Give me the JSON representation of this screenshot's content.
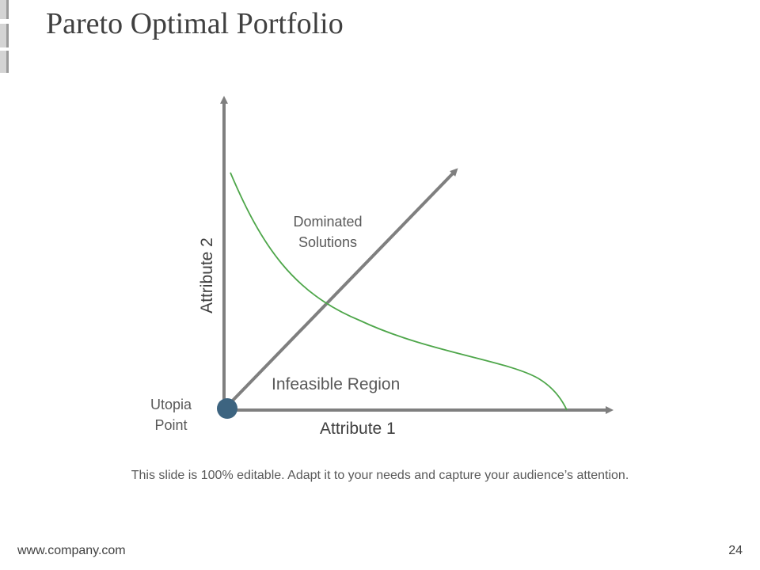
{
  "slide": {
    "title": "Pareto Optimal Portfolio",
    "caption": "This slide is 100% editable. Adapt it to your needs and capture your audience’s attention.",
    "footer_url": "www.company.com",
    "page_number": "24"
  },
  "diagram": {
    "x_axis_label": "Attribute 1",
    "y_axis_label": "Attribute 2",
    "dominated_label_line1": "Dominated",
    "dominated_label_line2": "Solutions",
    "infeasible_label": "Infeasible Region",
    "utopia_label_line1": "Utopia",
    "utopia_label_line2": "Point",
    "colors": {
      "axis": "#7f7f7f",
      "curve": "#4ea64a",
      "utopia_point": "#3d6480",
      "text": "#595959"
    }
  }
}
